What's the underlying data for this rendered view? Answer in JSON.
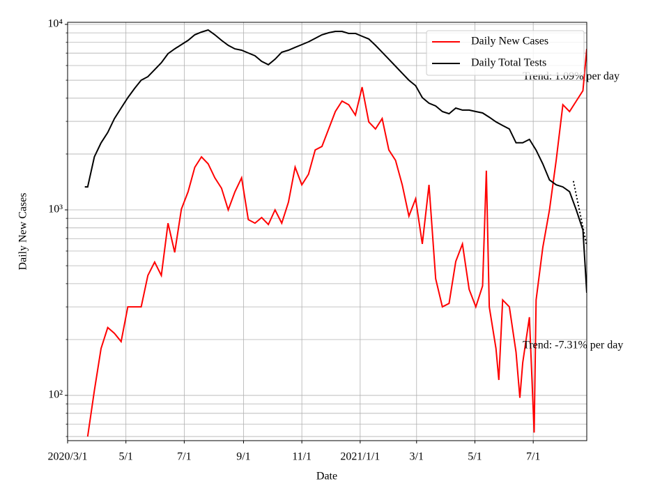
{
  "chart_data": {
    "type": "line",
    "xlabel": "Date",
    "ylabel": "Daily New Cases",
    "log_y": true,
    "grid": true,
    "legend": "upper right",
    "xlim": [
      "2020-03-01",
      "2021-08-26"
    ],
    "xticks": [
      {
        "value": "2020-03-01",
        "label": "2020/3/1"
      },
      {
        "value": "2020-05-01",
        "label": "5/1"
      },
      {
        "value": "2020-07-01",
        "label": "7/1"
      },
      {
        "value": "2020-09-01",
        "label": "9/1"
      },
      {
        "value": "2020-11-01",
        "label": "11/1"
      },
      {
        "value": "2021-01-01",
        "label": "2021/1/1"
      },
      {
        "value": "2021-03-01",
        "label": "3/1"
      },
      {
        "value": "2021-05-01",
        "label": "5/1"
      },
      {
        "value": "2021-07-01",
        "label": "7/1"
      }
    ],
    "ylim": [
      57,
      10260
    ],
    "yticks": [
      {
        "value": 100,
        "label": "10²"
      },
      {
        "value": 1000,
        "label": "10³"
      },
      {
        "value": 10000,
        "label": "10⁴"
      }
    ],
    "minor_yticks": [
      60,
      70,
      80,
      90,
      200,
      300,
      400,
      500,
      600,
      700,
      800,
      900,
      2000,
      3000,
      4000,
      5000,
      6000,
      7000,
      8000,
      9000
    ],
    "series": [
      {
        "name": "Daily New Cases",
        "color": "#ff0000",
        "x": [
          "2020-03-22",
          "2020-03-29",
          "2020-04-05",
          "2020-04-12",
          "2020-04-19",
          "2020-04-26",
          "2020-05-03",
          "2020-05-10",
          "2020-05-17",
          "2020-05-24",
          "2020-05-31",
          "2020-06-07",
          "2020-06-14",
          "2020-06-21",
          "2020-06-28",
          "2020-07-05",
          "2020-07-12",
          "2020-07-19",
          "2020-07-26",
          "2020-08-02",
          "2020-08-09",
          "2020-08-16",
          "2020-08-23",
          "2020-08-30",
          "2020-09-06",
          "2020-09-13",
          "2020-09-20",
          "2020-09-27",
          "2020-10-04",
          "2020-10-11",
          "2020-10-18",
          "2020-10-25",
          "2020-11-01",
          "2020-11-08",
          "2020-11-15",
          "2020-11-22",
          "2020-11-29",
          "2020-12-06",
          "2020-12-13",
          "2020-12-20",
          "2020-12-27",
          "2021-01-03",
          "2021-01-10",
          "2021-01-17",
          "2021-01-24",
          "2021-01-31",
          "2021-02-07",
          "2021-02-14",
          "2021-02-21",
          "2021-02-28",
          "2021-03-07",
          "2021-03-14",
          "2021-03-21",
          "2021-03-28",
          "2021-04-04",
          "2021-04-11",
          "2021-04-18",
          "2021-04-25",
          "2021-05-02",
          "2021-05-09",
          "2021-05-13",
          "2021-05-16",
          "2021-05-23",
          "2021-05-26",
          "2021-05-30",
          "2021-06-06",
          "2021-06-13",
          "2021-06-17",
          "2021-06-20",
          "2021-06-27",
          "2021-07-02",
          "2021-07-04",
          "2021-07-11",
          "2021-07-18",
          "2021-07-25",
          "2021-08-01",
          "2021-08-08",
          "2021-08-15",
          "2021-08-22",
          "2021-08-26"
        ],
        "values": [
          60,
          106,
          179,
          232,
          216,
          195,
          300,
          300,
          300,
          443,
          523,
          443,
          848,
          590,
          1010,
          1252,
          1696,
          1931,
          1771,
          1489,
          1308,
          1000,
          1250,
          1489,
          886,
          848,
          909,
          834,
          1000,
          848,
          1100,
          1700,
          1365,
          1556,
          2104,
          2198,
          2730,
          3390,
          3857,
          3690,
          3243,
          4588,
          2978,
          2730,
          3107,
          2104,
          1849,
          1365,
          925,
          1148,
          655,
          1365,
          425,
          300,
          313,
          527,
          655,
          373,
          300,
          389,
          1626,
          300,
          179,
          121,
          327,
          300,
          171,
          97,
          150,
          264,
          63,
          327,
          627,
          1000,
          1849,
          3690,
          3390,
          3857,
          4395,
          7380
        ]
      },
      {
        "name": "Daily Total Tests",
        "color": "#000000",
        "x": [
          "2020-03-19",
          "2020-03-22",
          "2020-03-29",
          "2020-04-05",
          "2020-04-12",
          "2020-04-19",
          "2020-04-26",
          "2020-05-03",
          "2020-05-10",
          "2020-05-17",
          "2020-05-24",
          "2020-05-31",
          "2020-06-07",
          "2020-06-14",
          "2020-06-21",
          "2020-06-28",
          "2020-07-05",
          "2020-07-12",
          "2020-07-19",
          "2020-07-26",
          "2020-08-02",
          "2020-08-09",
          "2020-08-16",
          "2020-08-23",
          "2020-08-30",
          "2020-09-06",
          "2020-09-13",
          "2020-09-20",
          "2020-09-27",
          "2020-10-04",
          "2020-10-11",
          "2020-10-18",
          "2020-10-25",
          "2020-11-01",
          "2020-11-08",
          "2020-11-15",
          "2020-11-22",
          "2020-11-29",
          "2020-12-06",
          "2020-12-13",
          "2020-12-20",
          "2020-12-27",
          "2021-01-03",
          "2021-01-10",
          "2021-01-17",
          "2021-01-24",
          "2021-01-31",
          "2021-02-07",
          "2021-02-14",
          "2021-02-21",
          "2021-02-28",
          "2021-03-07",
          "2021-03-14",
          "2021-03-21",
          "2021-03-28",
          "2021-04-04",
          "2021-04-11",
          "2021-04-18",
          "2021-04-25",
          "2021-05-02",
          "2021-05-09",
          "2021-05-16",
          "2021-05-23",
          "2021-05-30",
          "2021-06-06",
          "2021-06-13",
          "2021-06-20",
          "2021-06-27",
          "2021-07-04",
          "2021-07-11",
          "2021-07-18",
          "2021-07-25",
          "2021-08-01",
          "2021-08-08",
          "2021-08-15",
          "2021-08-22",
          "2021-08-26"
        ],
        "values": [
          1331,
          1330,
          1931,
          2298,
          2614,
          3106,
          3537,
          4027,
          4508,
          5003,
          5224,
          5700,
          6210,
          6950,
          7380,
          7780,
          8200,
          8790,
          9090,
          9330,
          8790,
          8200,
          7710,
          7380,
          7260,
          7010,
          6770,
          6320,
          6060,
          6490,
          7080,
          7260,
          7520,
          7780,
          8050,
          8410,
          8790,
          9010,
          9170,
          9170,
          8930,
          8930,
          8630,
          8340,
          7710,
          7080,
          6490,
          5950,
          5450,
          5000,
          4670,
          4030,
          3760,
          3630,
          3390,
          3300,
          3540,
          3450,
          3450,
          3390,
          3330,
          3160,
          2980,
          2850,
          2730,
          2300,
          2300,
          2400,
          2100,
          1770,
          1450,
          1365,
          1330,
          1253,
          1000,
          778,
          357
        ]
      }
    ],
    "trend_line": {
      "color": "#000000",
      "x": [
        "2021-08-12",
        "2021-08-26"
      ],
      "values": [
        1430,
        640
      ]
    },
    "annotations": [
      {
        "text": "Trend: 1.09% per day",
        "x": "2021-06-20",
        "y": 5200
      },
      {
        "text": "Trend: -7.31% per day",
        "x": "2021-06-20",
        "y": 185
      }
    ]
  }
}
